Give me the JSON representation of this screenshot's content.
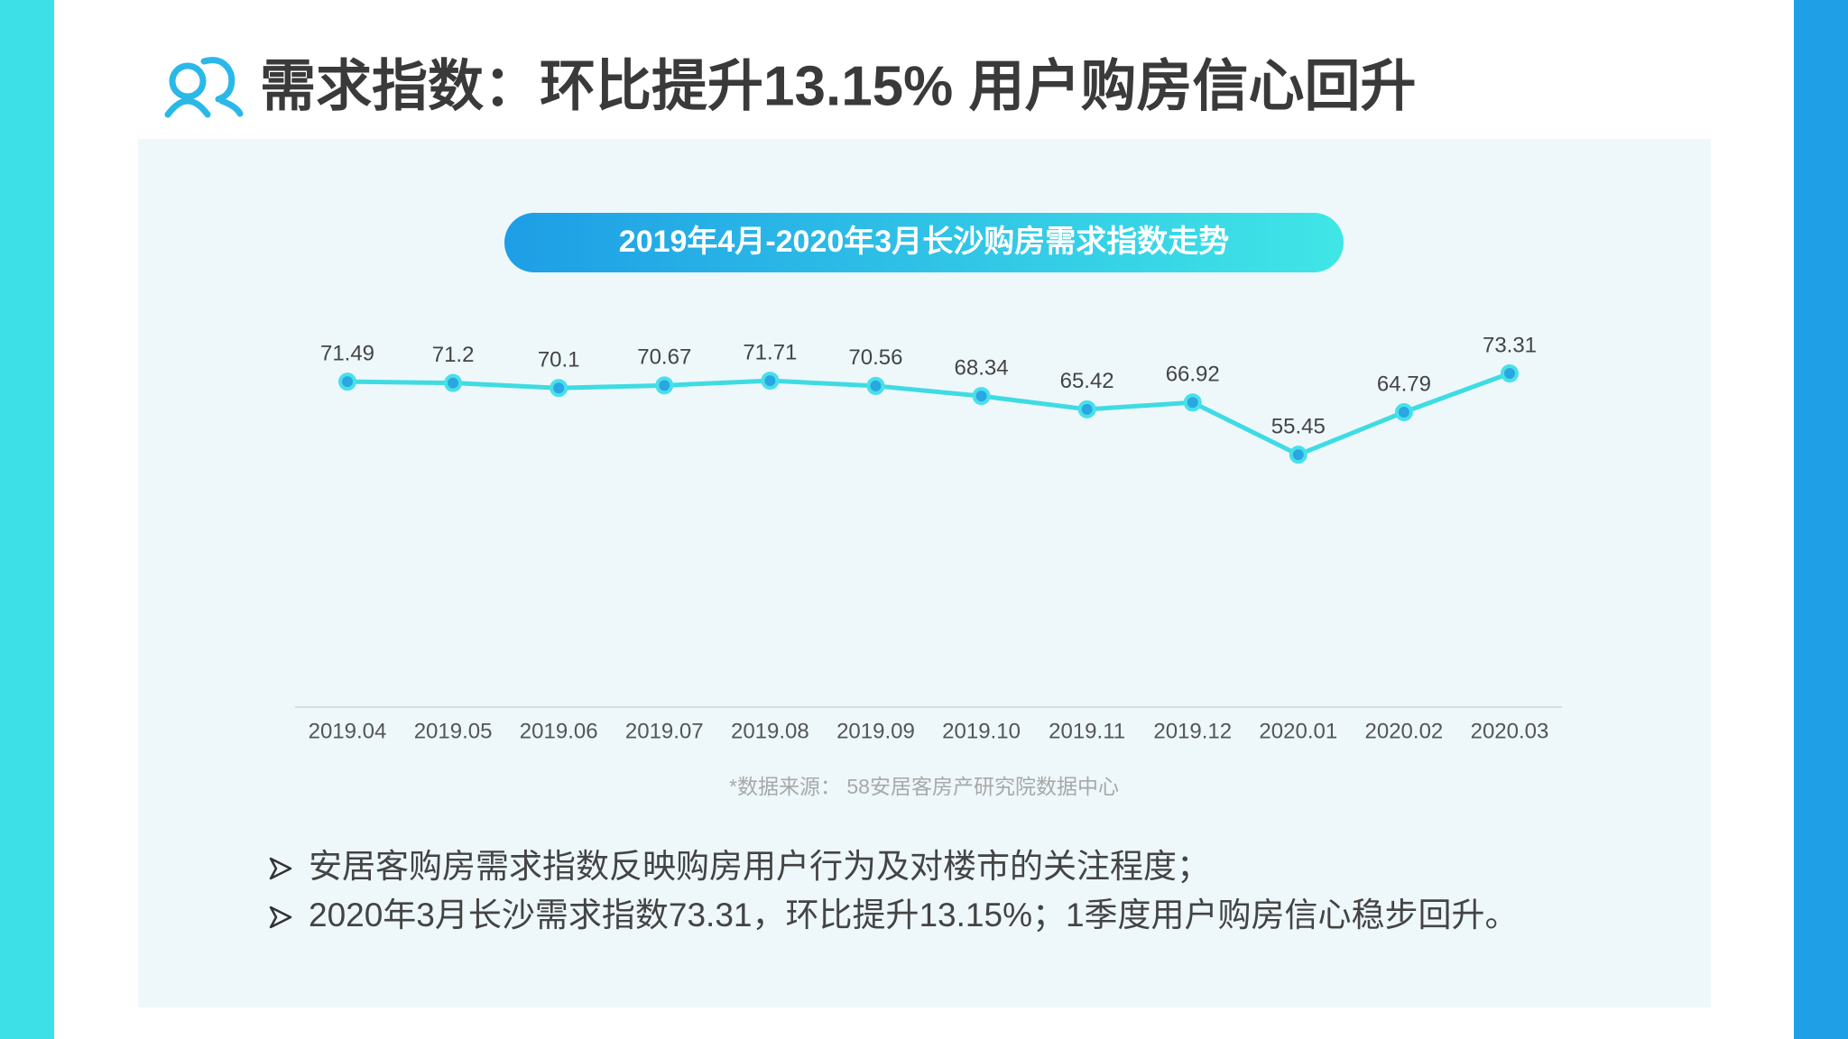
{
  "header": {
    "title": "需求指数：环比提升13.15% 用户购房信心回升"
  },
  "chart_data": {
    "type": "line",
    "title": "2019年4月-2020年3月长沙购房需求指数走势",
    "categories": [
      "2019.04",
      "2019.05",
      "2019.06",
      "2019.07",
      "2019.08",
      "2019.09",
      "2019.10",
      "2019.11",
      "2019.12",
      "2020.01",
      "2020.02",
      "2020.03"
    ],
    "values": [
      71.49,
      71.2,
      70.1,
      70.67,
      71.71,
      70.56,
      68.34,
      65.42,
      66.92,
      55.45,
      64.79,
      73.31
    ],
    "color": "#3fdbe3",
    "ylim": [
      0,
      85
    ],
    "source": "*数据来源： 58安居客房产研究院数据中心"
  },
  "notes": [
    "安居客购房需求指数反映购房用户行为及对楼市的关注程度；",
    "2020年3月长沙需求指数73.31，环比提升13.15%；1季度用户购房信心稳步回升。"
  ]
}
